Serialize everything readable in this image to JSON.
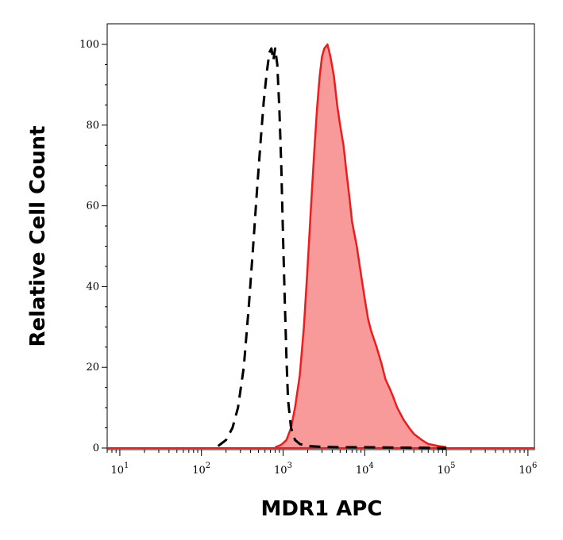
{
  "chart_data": {
    "type": "area",
    "title": "",
    "xlabel": "MDR1 APC",
    "ylabel": "Relative Cell Count",
    "x_scale": "log",
    "xlim": [
      7,
      1200000
    ],
    "ylim": [
      0,
      104
    ],
    "grid": false,
    "legend": "none",
    "y_ticks": [
      {
        "value": 0,
        "label": "0"
      },
      {
        "value": 20,
        "label": "20"
      },
      {
        "value": 40,
        "label": "40"
      },
      {
        "value": 60,
        "label": "60"
      },
      {
        "value": 80,
        "label": "80"
      },
      {
        "value": 100,
        "label": "100"
      }
    ],
    "x_ticks": [
      {
        "value": 10,
        "base": "10",
        "exp": "1"
      },
      {
        "value": 100,
        "base": "10",
        "exp": "2"
      },
      {
        "value": 1000,
        "base": "10",
        "exp": "3"
      },
      {
        "value": 10000,
        "base": "10",
        "exp": "4"
      },
      {
        "value": 100000,
        "base": "10",
        "exp": "5"
      },
      {
        "value": 1000000,
        "base": "10",
        "exp": "6"
      }
    ],
    "series": [
      {
        "style": "dashed",
        "color": "#000000",
        "filled": false,
        "x": [
          160,
          200,
          240,
          280,
          330,
          380,
          430,
          480,
          530,
          580,
          630,
          680,
          720,
          760,
          800,
          850,
          900,
          950,
          1000,
          1050,
          1100,
          1150,
          1250,
          1400,
          1600,
          2000,
          3000,
          5000,
          10000,
          30000,
          100000
        ],
        "y": [
          0.5,
          2,
          5,
          10,
          20,
          35,
          50,
          64,
          76,
          86,
          93,
          98,
          99,
          96,
          99,
          95,
          84,
          70,
          52,
          36,
          22,
          12,
          5,
          2,
          1,
          0.5,
          0.3,
          0.2,
          0.2,
          0.1,
          0
        ]
      },
      {
        "style": "solid",
        "color": "#ee1c1c",
        "fill": "#f99a9a",
        "filled": true,
        "x": [
          800,
          950,
          1100,
          1250,
          1400,
          1600,
          1800,
          2000,
          2200,
          2400,
          2600,
          2800,
          3000,
          3200,
          3500,
          3800,
          4200,
          4600,
          5000,
          5500,
          6000,
          6500,
          7000,
          8000,
          9000,
          10000,
          11000,
          12000,
          14000,
          16000,
          18000,
          20000,
          22000,
          25000,
          30000,
          35000,
          40000,
          50000,
          60000,
          80000,
          100000
        ],
        "y": [
          0.2,
          0.8,
          2,
          5,
          10,
          18,
          30,
          45,
          60,
          73,
          84,
          92,
          97,
          99,
          100,
          97,
          92,
          85,
          80,
          75,
          68,
          62,
          56,
          50,
          43,
          37,
          32,
          29,
          25,
          21,
          17,
          15,
          13,
          10,
          7,
          5,
          3.5,
          2,
          1,
          0.5,
          0.2
        ]
      }
    ]
  }
}
